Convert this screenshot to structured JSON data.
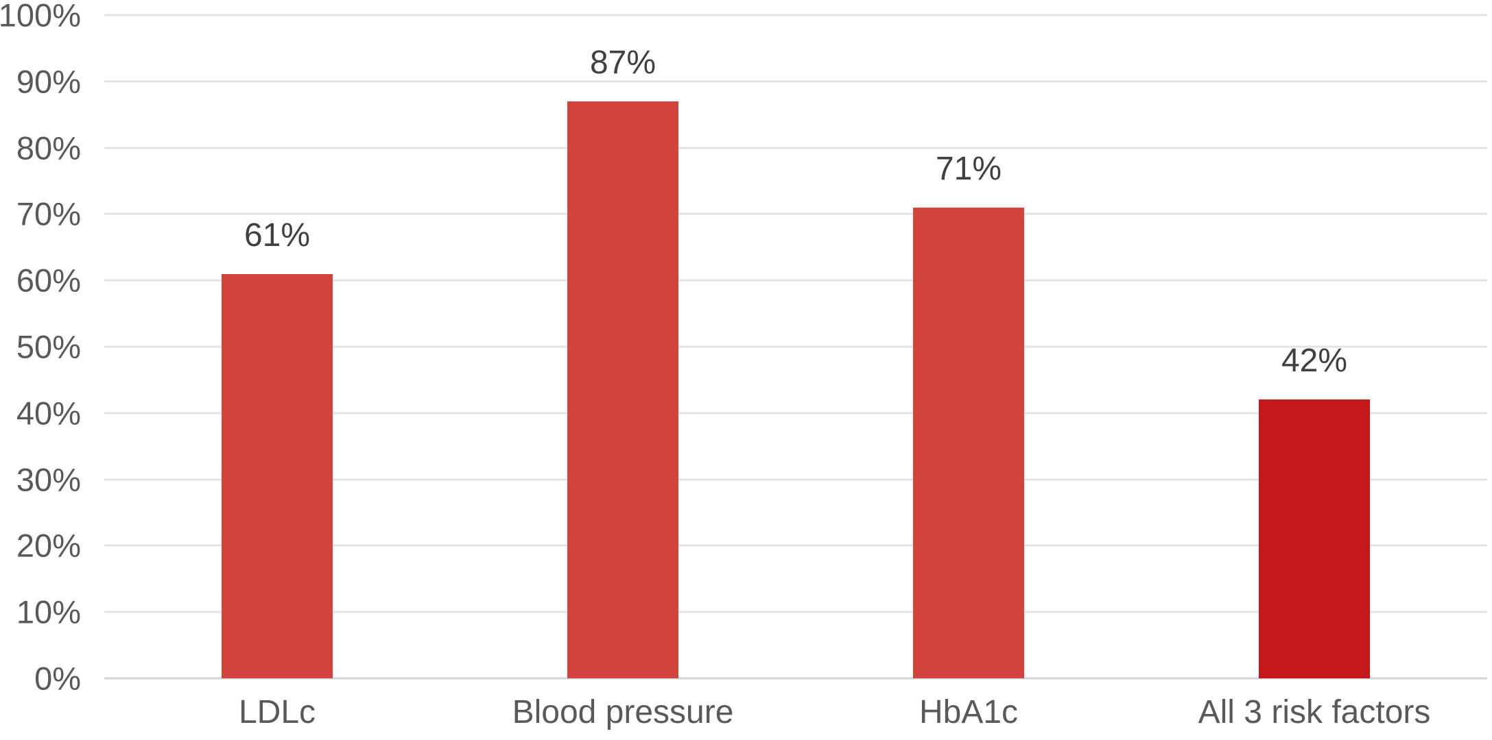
{
  "chart_data": {
    "type": "bar",
    "categories": [
      "LDLc",
      "Blood pressure",
      "HbA1c",
      "All 3 risk factors"
    ],
    "values": [
      61,
      87,
      71,
      42
    ],
    "value_labels": [
      "61%",
      "87%",
      "71%",
      "42%"
    ],
    "bar_colors": [
      "#D0443D",
      "#D0443D",
      "#D0443D",
      "#C5181B"
    ],
    "title": "",
    "xlabel": "",
    "ylabel": "",
    "ylim": [
      0,
      100
    ],
    "yticks": [
      0,
      10,
      20,
      30,
      40,
      50,
      60,
      70,
      80,
      90,
      100
    ],
    "ytick_labels": [
      "0%",
      "10%",
      "20%",
      "30%",
      "40%",
      "50%",
      "60%",
      "70%",
      "80%",
      "90%",
      "100%"
    ],
    "grid": "horizontal-major",
    "legend": "none",
    "colors": {
      "bar": "#D0443D",
      "bar_emphasis": "#C5181B",
      "gridline": "#E3E3E3",
      "axis_baseline": "#D5D5D5",
      "tick_text": "#595959",
      "data_label_text": "#404040",
      "background": "#FFFFFF"
    }
  }
}
